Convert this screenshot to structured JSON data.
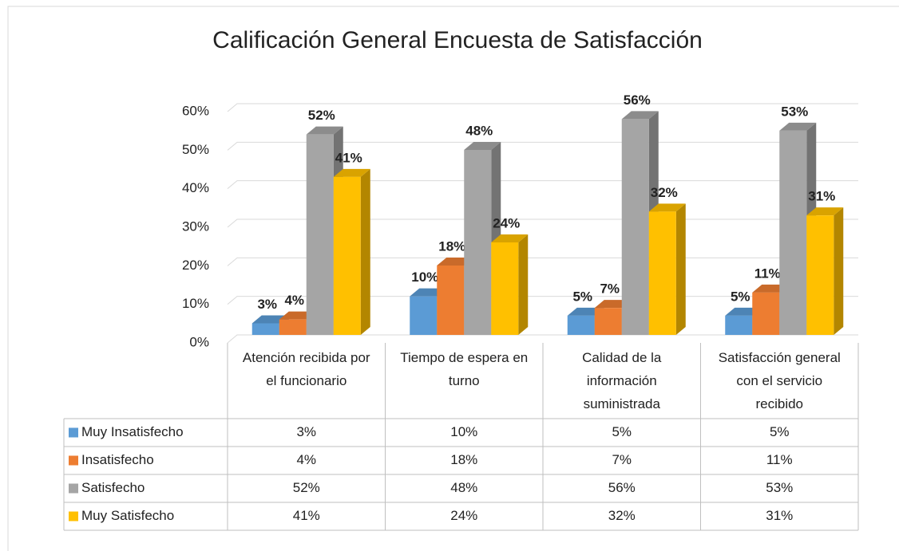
{
  "chart_data": {
    "type": "bar3d",
    "title": "Calificación General Encuesta de Satisfacción",
    "categories": [
      "Atención recibida por el funcionario",
      "Tiempo de espera en turno",
      "Calidad de la información suministrada",
      "Satisfacción general con el servicio recibido"
    ],
    "series": [
      {
        "name": "Muy Insatisfecho",
        "color": "#5b9bd5",
        "values": [
          3,
          10,
          5,
          5
        ],
        "value_labels": [
          "3%",
          "10%",
          "5%",
          "5%"
        ]
      },
      {
        "name": "Insatisfecho",
        "color": "#ed7d31",
        "values": [
          4,
          18,
          7,
          11
        ],
        "value_labels": [
          "4%",
          "18%",
          "7%",
          "11%"
        ]
      },
      {
        "name": "Satisfecho",
        "color": "#a5a5a5",
        "values": [
          52,
          48,
          56,
          53
        ],
        "value_labels": [
          "52%",
          "48%",
          "56%",
          "53%"
        ]
      },
      {
        "name": "Muy Satisfecho",
        "color": "#ffc000",
        "values": [
          41,
          24,
          32,
          31
        ],
        "value_labels": [
          "41%",
          "24%",
          "32%",
          "31%"
        ]
      }
    ],
    "ylim": [
      0,
      60
    ],
    "yticks": [
      {
        "value": 0,
        "label": "0%"
      },
      {
        "value": 10,
        "label": "10%"
      },
      {
        "value": 20,
        "label": "20%"
      },
      {
        "value": 30,
        "label": "30%"
      },
      {
        "value": 40,
        "label": "40%"
      },
      {
        "value": 50,
        "label": "50%"
      },
      {
        "value": 60,
        "label": "60%"
      }
    ],
    "grid": true,
    "data_table": true
  }
}
